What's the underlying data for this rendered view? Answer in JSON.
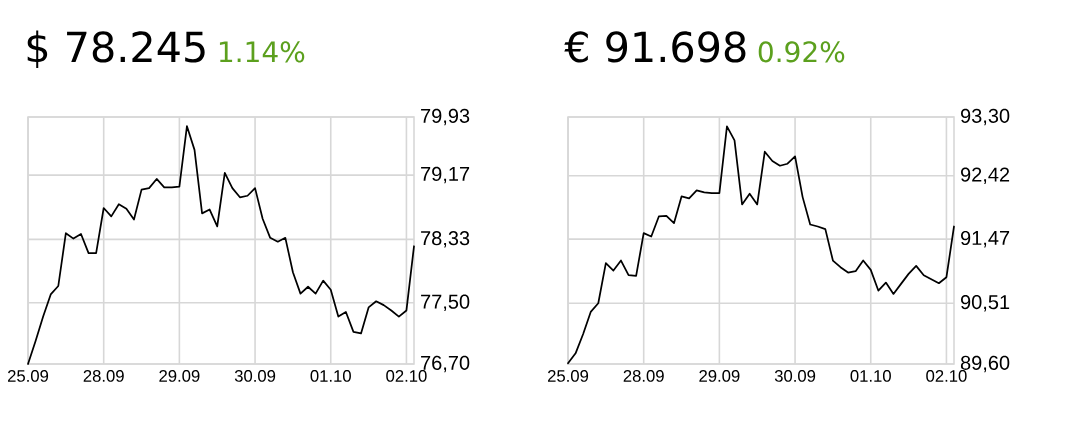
{
  "chart_data": [
    {
      "type": "line",
      "title": "$ 78.245",
      "subtitle": "1.14%",
      "color": "#000000",
      "grid": true,
      "categories": [
        "25.09",
        null,
        null,
        null,
        null,
        null,
        null,
        null,
        null,
        null,
        "28.09",
        null,
        null,
        null,
        null,
        null,
        null,
        null,
        null,
        null,
        "29.09",
        null,
        null,
        null,
        null,
        null,
        null,
        null,
        null,
        null,
        "30.09",
        null,
        null,
        null,
        null,
        null,
        null,
        null,
        null,
        null,
        "01.10",
        null,
        null,
        null,
        null,
        null,
        null,
        null,
        null,
        null,
        "02.10",
        null
      ],
      "values": [
        76.7,
        77.0,
        77.32,
        77.61,
        77.72,
        78.41,
        78.34,
        78.4,
        78.15,
        78.15,
        78.74,
        78.63,
        78.79,
        78.73,
        78.59,
        78.98,
        79.0,
        79.12,
        79.01,
        79.01,
        79.02,
        79.81,
        79.5,
        78.67,
        78.72,
        78.5,
        79.2,
        79.0,
        78.88,
        78.9,
        79.0,
        78.6,
        78.35,
        78.3,
        78.35,
        77.9,
        77.62,
        77.71,
        77.62,
        77.79,
        77.67,
        77.32,
        77.38,
        77.12,
        77.1,
        77.44,
        77.52,
        77.47,
        77.4,
        77.32,
        77.4,
        78.24
      ],
      "ylim": [
        76.7,
        79.93
      ],
      "yticks": [
        {
          "value": 76.7,
          "label": "76,70"
        },
        {
          "value": 77.5,
          "label": "77,50"
        },
        {
          "value": 78.33,
          "label": "78,33"
        },
        {
          "value": 79.17,
          "label": "79,17"
        },
        {
          "value": 79.93,
          "label": "79,93"
        }
      ]
    },
    {
      "type": "line",
      "title": "€ 91.698",
      "subtitle": "0.92%",
      "color": "#000000",
      "grid": true,
      "categories": [
        "25.09",
        null,
        null,
        null,
        null,
        null,
        null,
        null,
        null,
        null,
        "28.09",
        null,
        null,
        null,
        null,
        null,
        null,
        null,
        null,
        null,
        "29.09",
        null,
        null,
        null,
        null,
        null,
        null,
        null,
        null,
        null,
        "30.09",
        null,
        null,
        null,
        null,
        null,
        null,
        null,
        null,
        null,
        "01.10",
        null,
        null,
        null,
        null,
        null,
        null,
        null,
        null,
        null,
        "02.10",
        null
      ],
      "values": [
        89.61,
        89.76,
        90.05,
        90.38,
        90.51,
        91.11,
        91.0,
        91.15,
        90.93,
        90.92,
        91.56,
        91.51,
        91.81,
        91.82,
        91.71,
        92.11,
        92.08,
        92.2,
        92.17,
        92.16,
        92.16,
        93.16,
        92.95,
        91.99,
        92.15,
        91.99,
        92.78,
        92.64,
        92.57,
        92.6,
        92.71,
        92.1,
        91.69,
        91.66,
        91.62,
        91.15,
        91.05,
        90.97,
        90.99,
        91.15,
        91.01,
        90.7,
        90.82,
        90.65,
        90.8,
        90.95,
        91.07,
        90.93,
        90.87,
        90.81,
        90.9,
        91.66
      ],
      "ylim": [
        89.6,
        93.3
      ],
      "yticks": [
        {
          "value": 89.6,
          "label": "89,60"
        },
        {
          "value": 90.51,
          "label": "90,51"
        },
        {
          "value": 91.47,
          "label": "91,47"
        },
        {
          "value": 92.42,
          "label": "92,42"
        },
        {
          "value": 93.3,
          "label": "93,30"
        }
      ]
    }
  ]
}
